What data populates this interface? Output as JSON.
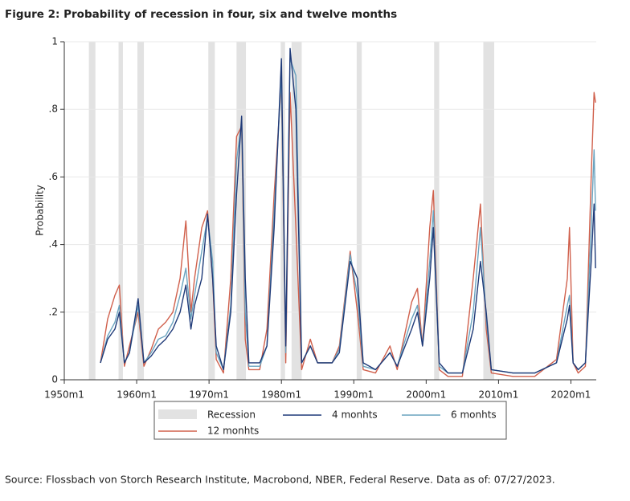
{
  "chart_data": {
    "type": "line",
    "title": "Figure 2: Probability of recession in four, six and twelve months",
    "y_label": "Probability",
    "source": "Source: Flossbach von Storch Research Institute, Macrobond, NBER, Federal Reserve. Data as of: 07/27/2023.",
    "xlim": [
      1950,
      2023.5
    ],
    "xticks": [
      {
        "value": 1950,
        "label": "1950m1"
      },
      {
        "value": 1960,
        "label": "1960m1"
      },
      {
        "value": 1970,
        "label": "1970m1"
      },
      {
        "value": 1980,
        "label": "1980m1"
      },
      {
        "value": 1990,
        "label": "1990m1"
      },
      {
        "value": 2000,
        "label": "2000m1"
      },
      {
        "value": 2010,
        "label": "2010m1"
      },
      {
        "value": 2020,
        "label": "2020m1"
      }
    ],
    "ylim": [
      0,
      1
    ],
    "yticks": [
      0,
      {
        "value": 0.2,
        "label": ".2"
      },
      {
        "value": 0.4,
        "label": ".4"
      },
      {
        "value": 0.6,
        "label": ".6"
      },
      {
        "value": 0.8,
        "label": ".8"
      },
      1
    ],
    "grid": true,
    "recessions": {
      "name": "Recession",
      "color": "#e2e2e2",
      "periods": [
        [
          1953.4,
          1954.3
        ],
        [
          1957.5,
          1958.1
        ],
        [
          1960.1,
          1961.0
        ],
        [
          1969.9,
          1970.8
        ],
        [
          1973.8,
          1975.1
        ],
        [
          1979.9,
          1980.5
        ],
        [
          1981.4,
          1982.8
        ],
        [
          1990.4,
          1991.1
        ],
        [
          2001.1,
          2001.8
        ],
        [
          2007.9,
          2009.4
        ]
      ]
    },
    "x": [
      1955,
      1956,
      1957,
      1957.6,
      1958.3,
      1959,
      1960.2,
      1961,
      1962,
      1963,
      1964,
      1965,
      1966,
      1966.8,
      1967.5,
      1968,
      1969,
      1969.8,
      1970.5,
      1971,
      1972,
      1973,
      1973.8,
      1974.5,
      1975,
      1975.5,
      1977,
      1978,
      1979,
      1980,
      1980.6,
      1981.2,
      1982,
      1982.8,
      1984,
      1985,
      1987,
      1988,
      1989.5,
      1990.5,
      1991.3,
      1993,
      1995,
      1996,
      1998,
      1998.8,
      1999.5,
      2000.5,
      2001,
      2001.8,
      2003,
      2005,
      2006.5,
      2007.5,
      2008.3,
      2009,
      2012,
      2015,
      2018,
      2019.5,
      2019.8,
      2020.3,
      2021,
      2022,
      2022.8,
      2023.2,
      2023.4
    ],
    "series": [
      {
        "name": "4 monhts",
        "color": "#1f3a78",
        "values": [
          0.05,
          0.12,
          0.15,
          0.2,
          0.05,
          0.08,
          0.24,
          0.05,
          0.07,
          0.1,
          0.12,
          0.15,
          0.2,
          0.28,
          0.15,
          0.22,
          0.3,
          0.49,
          0.3,
          0.1,
          0.03,
          0.2,
          0.55,
          0.78,
          0.3,
          0.05,
          0.05,
          0.1,
          0.45,
          0.95,
          0.1,
          0.98,
          0.8,
          0.05,
          0.1,
          0.05,
          0.05,
          0.08,
          0.35,
          0.3,
          0.05,
          0.03,
          0.08,
          0.04,
          0.15,
          0.2,
          0.1,
          0.3,
          0.45,
          0.05,
          0.02,
          0.02,
          0.15,
          0.35,
          0.2,
          0.03,
          0.02,
          0.02,
          0.05,
          0.18,
          0.22,
          0.05,
          0.03,
          0.05,
          0.35,
          0.52,
          0.33
        ]
      },
      {
        "name": "6 monhts",
        "color": "#6aa3bf",
        "values": [
          0.05,
          0.13,
          0.17,
          0.22,
          0.05,
          0.08,
          0.22,
          0.05,
          0.08,
          0.12,
          0.13,
          0.17,
          0.25,
          0.33,
          0.18,
          0.25,
          0.38,
          0.48,
          0.35,
          0.08,
          0.03,
          0.22,
          0.65,
          0.76,
          0.2,
          0.04,
          0.04,
          0.1,
          0.5,
          0.9,
          0.08,
          0.95,
          0.9,
          0.05,
          0.1,
          0.05,
          0.05,
          0.09,
          0.37,
          0.25,
          0.04,
          0.03,
          0.08,
          0.04,
          0.18,
          0.22,
          0.1,
          0.35,
          0.5,
          0.04,
          0.02,
          0.02,
          0.2,
          0.45,
          0.18,
          0.03,
          0.02,
          0.02,
          0.05,
          0.22,
          0.25,
          0.05,
          0.03,
          0.05,
          0.45,
          0.68,
          0.5
        ]
      },
      {
        "name": "12 monhts",
        "color": "#d0604c",
        "values": [
          0.05,
          0.18,
          0.25,
          0.28,
          0.04,
          0.1,
          0.2,
          0.04,
          0.09,
          0.15,
          0.17,
          0.2,
          0.3,
          0.47,
          0.2,
          0.3,
          0.45,
          0.5,
          0.3,
          0.06,
          0.02,
          0.3,
          0.72,
          0.75,
          0.12,
          0.03,
          0.03,
          0.15,
          0.55,
          0.88,
          0.05,
          0.85,
          0.45,
          0.03,
          0.12,
          0.05,
          0.05,
          0.1,
          0.38,
          0.2,
          0.03,
          0.02,
          0.1,
          0.03,
          0.23,
          0.27,
          0.1,
          0.45,
          0.56,
          0.03,
          0.01,
          0.01,
          0.3,
          0.52,
          0.15,
          0.02,
          0.01,
          0.01,
          0.06,
          0.3,
          0.45,
          0.05,
          0.02,
          0.04,
          0.6,
          0.85,
          0.82
        ]
      }
    ]
  }
}
